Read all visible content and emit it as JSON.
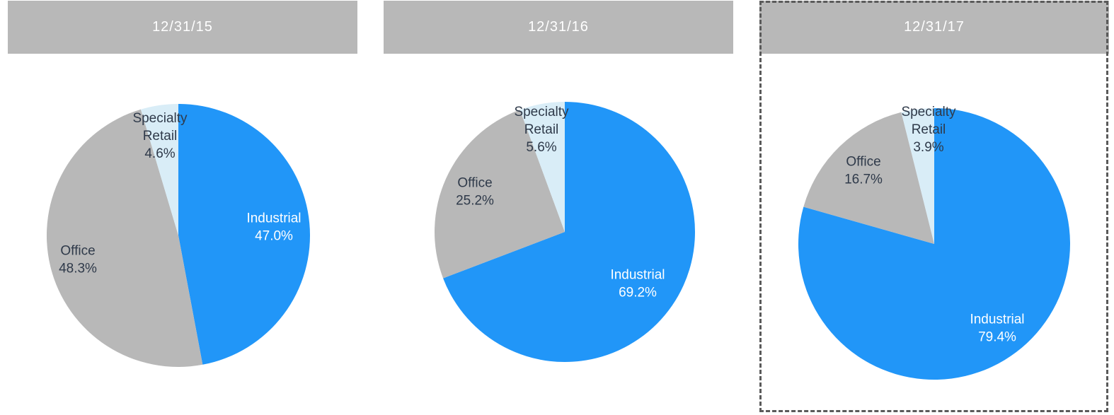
{
  "colors": {
    "industrial": "#2196f8",
    "office": "#b8b8b8",
    "specialty_retail": "#d9edf7",
    "dark_text": "#2f3a4a",
    "light_text": "#ffffff",
    "header_bg": "#b8b8b8"
  },
  "chart_data": [
    {
      "type": "pie",
      "title": "12/31/15",
      "slices": [
        {
          "label_lines": [
            "Industrial"
          ],
          "value": 47.0,
          "value_label": "47.0%",
          "color_key": "industrial"
        },
        {
          "label_lines": [
            "Office"
          ],
          "value": 48.3,
          "value_label": "48.3%",
          "color_key": "office"
        },
        {
          "label_lines": [
            "Specialty",
            "Retail"
          ],
          "value": 4.6,
          "value_label": "4.6%",
          "color_key": "specialty_retail"
        }
      ]
    },
    {
      "type": "pie",
      "title": "12/31/16",
      "slices": [
        {
          "label_lines": [
            "Industrial"
          ],
          "value": 69.2,
          "value_label": "69.2%",
          "color_key": "industrial"
        },
        {
          "label_lines": [
            "Office"
          ],
          "value": 25.2,
          "value_label": "25.2%",
          "color_key": "office"
        },
        {
          "label_lines": [
            "Specialty",
            "Retail"
          ],
          "value": 5.6,
          "value_label": "5.6%",
          "color_key": "specialty_retail"
        }
      ]
    },
    {
      "type": "pie",
      "title": "12/31/17",
      "highlighted": true,
      "slices": [
        {
          "label_lines": [
            "Industrial"
          ],
          "value": 79.4,
          "value_label": "79.4%",
          "color_key": "industrial"
        },
        {
          "label_lines": [
            "Office"
          ],
          "value": 16.7,
          "value_label": "16.7%",
          "color_key": "office"
        },
        {
          "label_lines": [
            "Specialty",
            "Retail"
          ],
          "value": 3.9,
          "value_label": "3.9%",
          "color_key": "specialty_retail"
        }
      ]
    }
  ]
}
